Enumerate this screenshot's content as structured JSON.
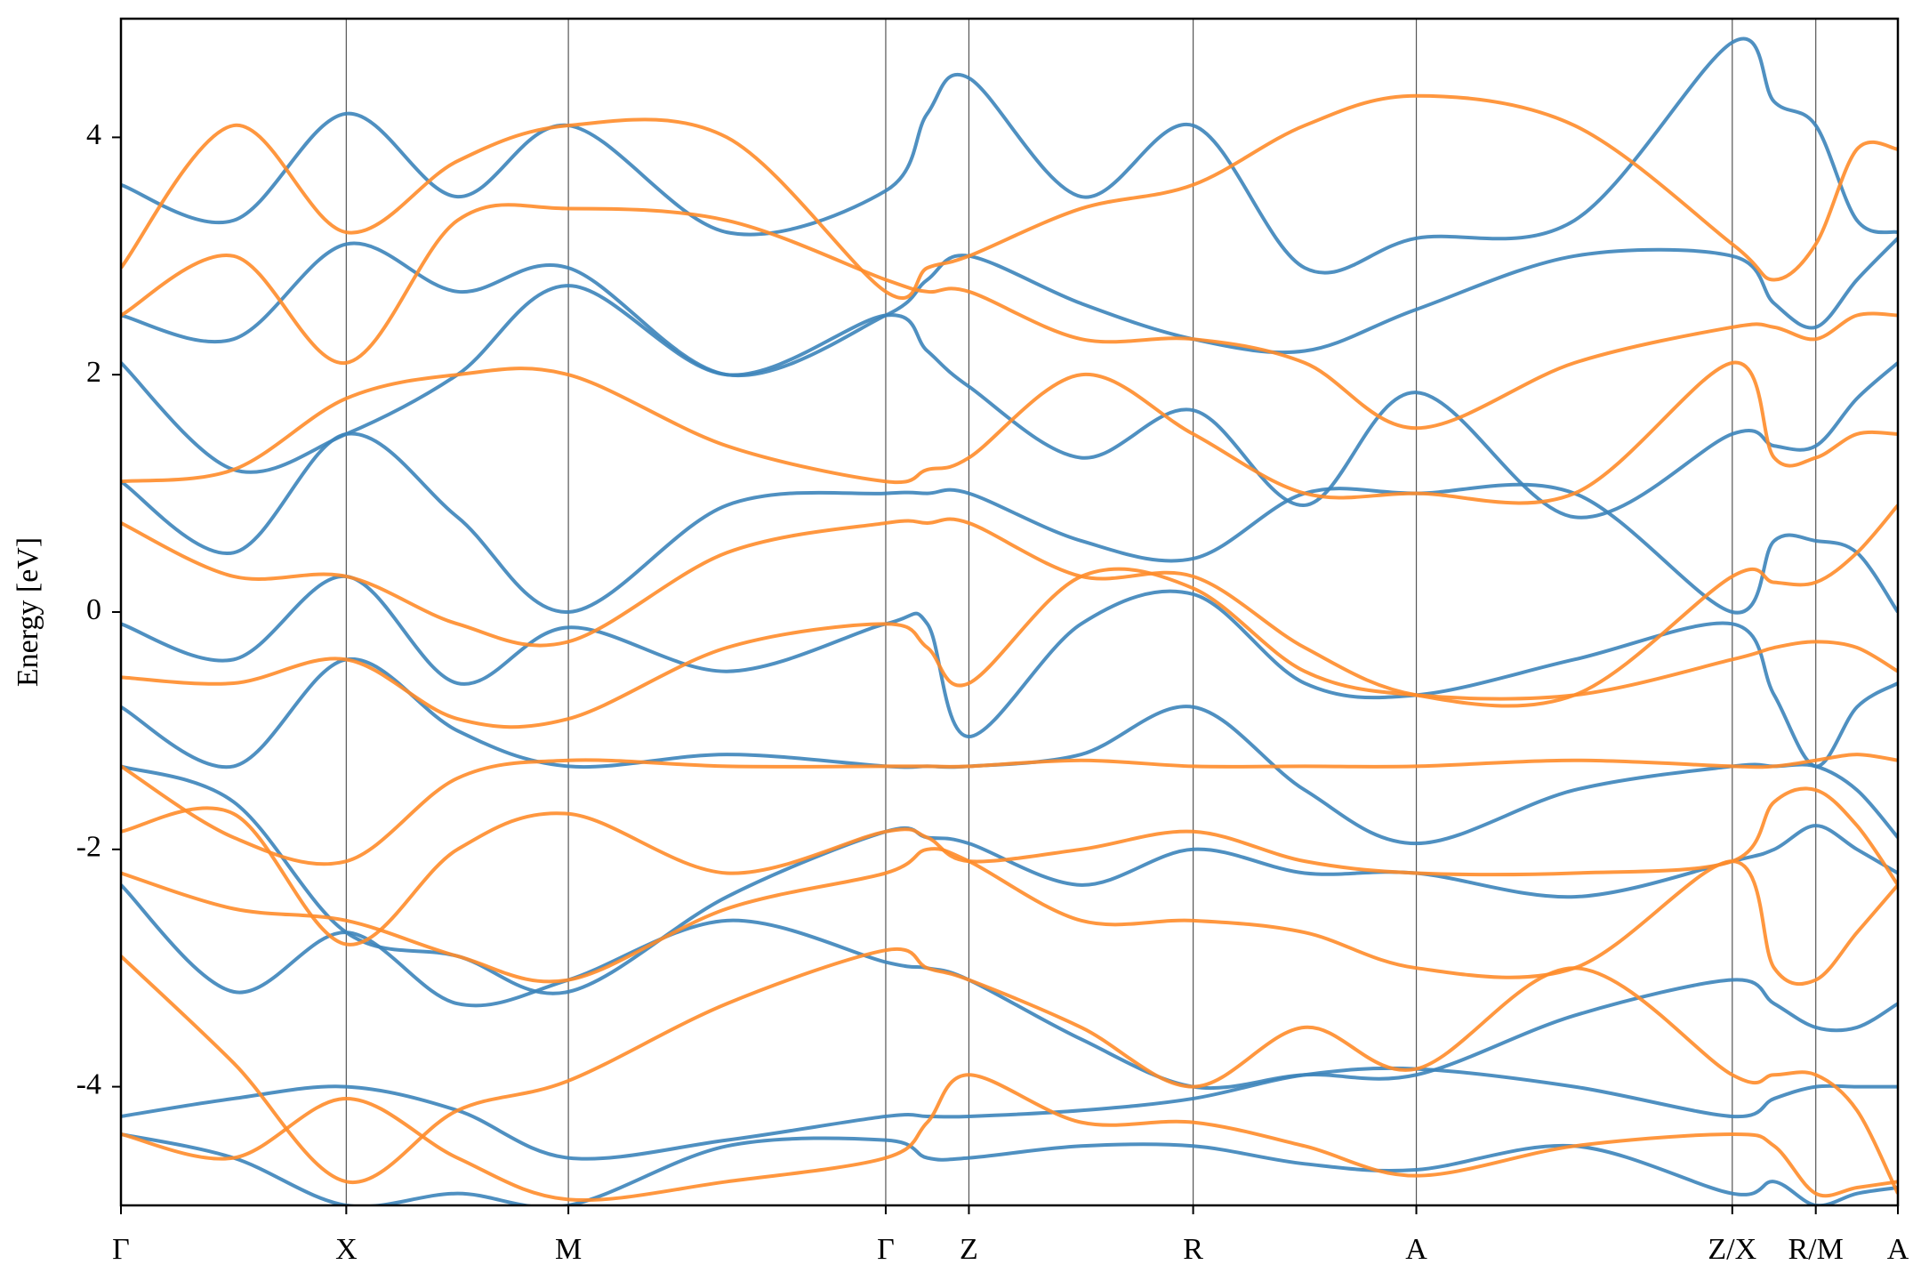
{
  "chart_data": {
    "type": "line",
    "ylabel": "Energy [eV]",
    "xlim": [
      0,
      5.0
    ],
    "ylim": [
      -5,
      5
    ],
    "yticks": [
      -4,
      -2,
      0,
      2,
      4
    ],
    "xticks": [
      {
        "value": 0,
        "label": "Γ"
      },
      {
        "value": 0.634,
        "label": "X"
      },
      {
        "value": 1.259,
        "label": "M"
      },
      {
        "value": 2.152,
        "label": "Γ"
      },
      {
        "value": 2.386,
        "label": "Z"
      },
      {
        "value": 3.017,
        "label": "R"
      },
      {
        "value": 3.645,
        "label": "A"
      },
      {
        "value": 4.534,
        "label": "Z/X"
      },
      {
        "value": 4.769,
        "label": "R/M"
      },
      {
        "value": 5.0,
        "label": "A"
      }
    ],
    "grid": "x",
    "x": [
      0,
      0.317,
      0.634,
      0.947,
      1.259,
      1.705,
      2.152,
      2.269,
      2.386,
      2.702,
      3.017,
      3.331,
      3.645,
      4.09,
      4.534,
      4.652,
      4.769,
      4.885,
      5.0
    ],
    "series": [
      {
        "color": "#3c84ba",
        "values": [
          -4.25,
          -4.1,
          -4.0,
          -4.2,
          -4.6,
          -4.45,
          -4.25,
          -4.25,
          -4.25,
          -4.2,
          -4.1,
          -3.9,
          -3.85,
          -4.0,
          -4.25,
          -4.1,
          -4.0,
          -4.0,
          -4.0
        ]
      },
      {
        "color": "#3c84ba",
        "values": [
          -2.3,
          -3.2,
          -2.7,
          -3.3,
          -3.1,
          -2.6,
          -2.95,
          -3.0,
          -3.1,
          -3.6,
          -4.0,
          -3.9,
          -3.9,
          -3.4,
          -3.1,
          -3.3,
          -3.5,
          -3.5,
          -3.3
        ]
      },
      {
        "color": "#3c84ba",
        "values": [
          -1.3,
          -1.6,
          -2.7,
          -2.9,
          -3.2,
          -2.4,
          -1.85,
          -1.9,
          -1.95,
          -2.3,
          -2.0,
          -2.2,
          -2.2,
          -2.4,
          -2.1,
          -2.0,
          -1.8,
          -2.0,
          -2.2
        ]
      },
      {
        "color": "#3c84ba",
        "values": [
          -0.8,
          -1.3,
          -0.4,
          -1.0,
          -1.3,
          -1.2,
          -1.3,
          -1.3,
          -1.3,
          -1.2,
          -0.8,
          -1.5,
          -1.95,
          -1.5,
          -1.3,
          -1.3,
          -1.3,
          -1.5,
          -1.9
        ]
      },
      {
        "color": "#3c84ba",
        "values": [
          -0.1,
          -0.4,
          0.3,
          -0.6,
          -0.13,
          -0.5,
          -0.1,
          -0.1,
          -1.05,
          -0.1,
          0.15,
          -0.6,
          -0.7,
          -0.4,
          -0.1,
          -0.7,
          -1.3,
          -0.8,
          -0.6
        ]
      },
      {
        "color": "#3c84ba",
        "values": [
          1.1,
          0.5,
          1.5,
          0.8,
          0.0,
          0.9,
          1.0,
          1.0,
          1.0,
          0.6,
          0.45,
          1.0,
          1.0,
          1.0,
          0.0,
          0.6,
          0.6,
          0.5,
          0.0
        ]
      },
      {
        "color": "#3c84ba",
        "values": [
          2.1,
          1.2,
          1.5,
          2.0,
          2.75,
          2.0,
          2.5,
          2.2,
          1.9,
          1.3,
          1.7,
          0.9,
          1.85,
          0.8,
          1.5,
          1.4,
          1.4,
          1.8,
          2.1
        ]
      },
      {
        "color": "#3c84ba",
        "values": [
          2.5,
          2.3,
          3.1,
          2.7,
          2.9,
          2.0,
          2.5,
          2.8,
          3.0,
          2.6,
          2.3,
          2.2,
          2.55,
          3.0,
          3.0,
          2.6,
          2.4,
          2.8,
          3.15
        ]
      },
      {
        "color": "#3c84ba",
        "values": [
          3.6,
          3.3,
          4.2,
          3.5,
          4.1,
          3.2,
          3.55,
          4.2,
          4.5,
          3.5,
          4.1,
          2.9,
          3.15,
          3.3,
          4.8,
          4.3,
          4.1,
          3.3,
          3.2
        ]
      },
      {
        "color": "#3c84ba",
        "values": [
          -4.4,
          -4.6,
          -5.0,
          -4.9,
          -5.0,
          -4.5,
          -4.45,
          -4.6,
          -4.6,
          -4.5,
          -4.5,
          -4.65,
          -4.7,
          -4.5,
          -4.9,
          -4.8,
          -5.0,
          -4.9,
          -4.85
        ]
      },
      {
        "color": "#ff8c2a",
        "values": [
          -1.85,
          -1.7,
          -2.8,
          -2.0,
          -1.7,
          -2.2,
          -1.85,
          -1.9,
          -2.1,
          -2.0,
          -1.85,
          -2.1,
          -2.2,
          -2.2,
          -2.1,
          -1.6,
          -1.5,
          -1.8,
          -2.3
        ]
      },
      {
        "color": "#ff8c2a",
        "values": [
          -1.3,
          -1.9,
          -2.1,
          -1.4,
          -1.25,
          -1.3,
          -1.3,
          -1.3,
          -1.3,
          -1.25,
          -1.3,
          -1.3,
          -1.3,
          -1.25,
          -1.3,
          -1.3,
          -1.25,
          -1.2,
          -1.25
        ]
      },
      {
        "color": "#ff8c2a",
        "values": [
          -0.55,
          -0.6,
          -0.4,
          -0.9,
          -0.9,
          -0.3,
          -0.1,
          -0.3,
          -0.6,
          0.3,
          0.2,
          -0.5,
          -0.7,
          -0.7,
          -0.4,
          -0.3,
          -0.25,
          -0.3,
          -0.5
        ]
      },
      {
        "color": "#ff8c2a",
        "values": [
          0.75,
          0.3,
          0.3,
          -0.1,
          -0.25,
          0.5,
          0.75,
          0.75,
          0.75,
          0.3,
          0.3,
          -0.3,
          -0.7,
          -0.7,
          0.3,
          0.25,
          0.25,
          0.5,
          0.9
        ]
      },
      {
        "color": "#ff8c2a",
        "values": [
          1.1,
          1.2,
          1.8,
          2.0,
          2.0,
          1.4,
          1.1,
          1.2,
          1.3,
          2.0,
          1.5,
          1.0,
          1.0,
          1.0,
          2.1,
          1.3,
          1.3,
          1.5,
          1.5
        ]
      },
      {
        "color": "#ff8c2a",
        "values": [
          2.5,
          3.0,
          2.1,
          3.3,
          3.4,
          3.3,
          2.8,
          2.7,
          2.7,
          2.3,
          2.3,
          2.1,
          1.55,
          2.1,
          2.4,
          2.4,
          2.3,
          2.5,
          2.5
        ]
      },
      {
        "color": "#ff8c2a",
        "values": [
          2.9,
          4.1,
          3.2,
          3.8,
          4.1,
          4.0,
          2.7,
          2.9,
          3.0,
          3.4,
          3.6,
          4.1,
          4.35,
          4.1,
          3.1,
          2.8,
          3.1,
          3.9,
          3.9
        ]
      },
      {
        "color": "#ff8c2a",
        "values": [
          -2.2,
          -2.5,
          -2.6,
          -2.9,
          -3.1,
          -2.5,
          -2.2,
          -2.0,
          -2.1,
          -2.6,
          -2.6,
          -2.7,
          -3.0,
          -3.0,
          -2.1,
          -3.0,
          -3.1,
          -2.7,
          -2.3
        ]
      },
      {
        "color": "#ff8c2a",
        "values": [
          -2.9,
          -3.8,
          -4.8,
          -4.2,
          -3.95,
          -3.3,
          -2.85,
          -3.0,
          -3.1,
          -3.5,
          -4.0,
          -3.5,
          -3.85,
          -3.0,
          -3.9,
          -3.9,
          -3.9,
          -4.2,
          -4.9
        ]
      },
      {
        "color": "#ff8c2a",
        "values": [
          -4.4,
          -4.6,
          -4.1,
          -4.6,
          -4.95,
          -4.8,
          -4.6,
          -4.3,
          -3.9,
          -4.3,
          -4.3,
          -4.5,
          -4.75,
          -4.5,
          -4.4,
          -4.5,
          -4.9,
          -4.85,
          -4.8
        ]
      }
    ]
  }
}
